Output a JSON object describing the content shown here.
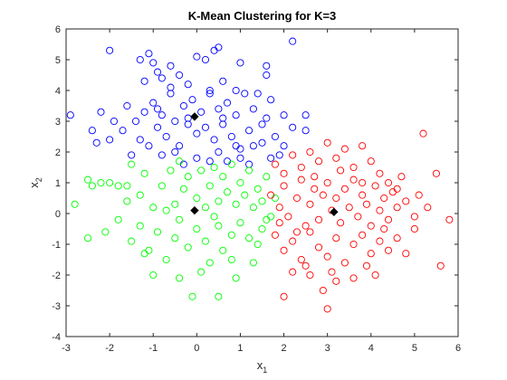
{
  "chart_data": {
    "type": "scatter",
    "title": "K-Mean Clustering for K=3",
    "xlabel": "x",
    "xlabel_sub": "1",
    "ylabel": "x",
    "ylabel_sub": "2",
    "xlim": [
      -3,
      6
    ],
    "ylim": [
      -4,
      6
    ],
    "x_ticks": [
      "-3",
      "-2",
      "-1",
      "0",
      "1",
      "2",
      "3",
      "4",
      "5",
      "6"
    ],
    "y_ticks": [
      "-4",
      "-3",
      "-2",
      "-1",
      "0",
      "1",
      "2",
      "3",
      "4",
      "5",
      "6"
    ],
    "grid": false,
    "marker": "open-circle",
    "series": [
      {
        "color": "#0000ff",
        "points": [
          [
            -2.0,
            5.3
          ],
          [
            -1.3,
            5.0
          ],
          [
            -1.1,
            5.2
          ],
          [
            -1.0,
            4.9
          ],
          [
            -0.9,
            4.6
          ],
          [
            -0.8,
            4.4
          ],
          [
            -0.6,
            4.8
          ],
          [
            -0.4,
            4.5
          ],
          [
            -0.2,
            4.2
          ],
          [
            0.0,
            5.1
          ],
          [
            0.2,
            5.0
          ],
          [
            0.4,
            5.3
          ],
          [
            0.5,
            5.4
          ],
          [
            0.6,
            4.3
          ],
          [
            1.0,
            4.9
          ],
          [
            1.6,
            4.8
          ],
          [
            2.2,
            5.6
          ],
          [
            1.6,
            4.5
          ],
          [
            -2.9,
            3.2
          ],
          [
            -2.4,
            2.7
          ],
          [
            -2.3,
            2.3
          ],
          [
            -2.2,
            3.3
          ],
          [
            -1.9,
            3.0
          ],
          [
            -1.7,
            2.7
          ],
          [
            -1.6,
            3.5
          ],
          [
            -1.4,
            3.0
          ],
          [
            -1.3,
            2.4
          ],
          [
            -1.2,
            3.3
          ],
          [
            -1.0,
            3.6
          ],
          [
            -0.9,
            2.8
          ],
          [
            -0.8,
            3.2
          ],
          [
            -0.7,
            2.5
          ],
          [
            -0.6,
            3.9
          ],
          [
            -0.5,
            3.0
          ],
          [
            -0.4,
            2.2
          ],
          [
            -0.3,
            3.5
          ],
          [
            -0.2,
            2.9
          ],
          [
            -0.1,
            3.7
          ],
          [
            0.0,
            2.6
          ],
          [
            0.1,
            3.3
          ],
          [
            0.2,
            2.8
          ],
          [
            0.3,
            3.9
          ],
          [
            0.4,
            2.4
          ],
          [
            0.5,
            3.4
          ],
          [
            0.6,
            2.9
          ],
          [
            0.7,
            3.6
          ],
          [
            0.8,
            2.5
          ],
          [
            0.9,
            3.2
          ],
          [
            1.0,
            2.1
          ],
          [
            1.1,
            3.9
          ],
          [
            1.2,
            2.7
          ],
          [
            1.3,
            3.4
          ],
          [
            1.5,
            2.9
          ],
          [
            1.7,
            3.7
          ],
          [
            1.8,
            2.5
          ],
          [
            2.0,
            3.2
          ],
          [
            2.2,
            2.8
          ],
          [
            2.5,
            2.7
          ],
          [
            2.5,
            3.2
          ],
          [
            -1.5,
            1.9
          ],
          [
            -1.1,
            2.2
          ],
          [
            -0.8,
            1.9
          ],
          [
            -0.5,
            2.0
          ],
          [
            -0.3,
            1.6
          ],
          [
            0.0,
            1.8
          ],
          [
            0.3,
            1.7
          ],
          [
            0.5,
            2.0
          ],
          [
            0.7,
            1.7
          ],
          [
            0.9,
            2.2
          ],
          [
            1.0,
            1.8
          ],
          [
            1.2,
            1.6
          ],
          [
            1.5,
            2.3
          ],
          [
            1.7,
            1.8
          ],
          [
            2.0,
            2.2
          ],
          [
            1.9,
            1.9
          ],
          [
            -0.6,
            4.1
          ],
          [
            0.3,
            4.0
          ],
          [
            -1.2,
            4.3
          ],
          [
            0.9,
            4.0
          ],
          [
            1.4,
            3.9
          ],
          [
            -0.9,
            3.4
          ],
          [
            0.6,
            3.1
          ],
          [
            1.6,
            3.1
          ],
          [
            -0.2,
            3.1
          ],
          [
            1.3,
            2.2
          ],
          [
            -2.0,
            2.4
          ]
        ]
      },
      {
        "color": "#00ff00",
        "points": [
          [
            -2.5,
            1.1
          ],
          [
            -2.4,
            0.9
          ],
          [
            -2.2,
            1.0
          ],
          [
            -2.0,
            1.0
          ],
          [
            -1.8,
            0.9
          ],
          [
            -1.6,
            0.4
          ],
          [
            -1.5,
            1.6
          ],
          [
            -1.3,
            0.6
          ],
          [
            -1.2,
            1.3
          ],
          [
            -1.0,
            0.2
          ],
          [
            -0.8,
            0.9
          ],
          [
            -0.6,
            1.4
          ],
          [
            -0.5,
            0.3
          ],
          [
            -0.4,
            1.7
          ],
          [
            -0.3,
            0.8
          ],
          [
            -0.2,
            1.2
          ],
          [
            0.0,
            0.5
          ],
          [
            0.1,
            1.4
          ],
          [
            0.2,
            0.2
          ],
          [
            0.3,
            0.9
          ],
          [
            0.4,
            1.5
          ],
          [
            0.5,
            0.4
          ],
          [
            0.6,
            1.2
          ],
          [
            0.7,
            0.7
          ],
          [
            0.8,
            1.6
          ],
          [
            0.9,
            0.3
          ],
          [
            1.0,
            1.0
          ],
          [
            1.1,
            0.6
          ],
          [
            1.2,
            1.4
          ],
          [
            1.3,
            0.2
          ],
          [
            1.4,
            0.8
          ],
          [
            1.5,
            0.4
          ],
          [
            1.6,
            1.2
          ],
          [
            1.7,
            -0.1
          ],
          [
            1.8,
            0.5
          ],
          [
            -2.8,
            0.3
          ],
          [
            -2.5,
            -0.8
          ],
          [
            -2.1,
            -0.6
          ],
          [
            -1.8,
            -0.2
          ],
          [
            -1.5,
            -0.9
          ],
          [
            -1.3,
            -0.4
          ],
          [
            -1.1,
            -1.2
          ],
          [
            -0.9,
            -0.6
          ],
          [
            -0.7,
            -1.5
          ],
          [
            -0.5,
            -0.8
          ],
          [
            -0.4,
            -0.2
          ],
          [
            -0.2,
            -1.1
          ],
          [
            0.0,
            -0.5
          ],
          [
            0.2,
            -0.9
          ],
          [
            0.3,
            -1.6
          ],
          [
            0.5,
            -0.4
          ],
          [
            0.6,
            -1.2
          ],
          [
            0.8,
            -0.7
          ],
          [
            1.0,
            -0.3
          ],
          [
            1.2,
            -0.8
          ],
          [
            1.4,
            -1.0
          ],
          [
            1.5,
            -0.5
          ],
          [
            1.6,
            -0.2
          ],
          [
            -1.0,
            -2.0
          ],
          [
            -0.4,
            -2.1
          ],
          [
            0.1,
            -1.9
          ],
          [
            0.5,
            -2.7
          ],
          [
            0.9,
            -2.1
          ],
          [
            -0.1,
            -2.7
          ],
          [
            -1.2,
            -1.3
          ],
          [
            0.8,
            -1.5
          ],
          [
            1.3,
            -1.6
          ],
          [
            -1.6,
            0.9
          ],
          [
            -0.7,
            0.1
          ],
          [
            0.4,
            -0.1
          ]
        ]
      },
      {
        "color": "#ff0000",
        "points": [
          [
            1.8,
            1.6
          ],
          [
            2.0,
            1.3
          ],
          [
            2.2,
            1.9
          ],
          [
            2.4,
            1.5
          ],
          [
            2.6,
            2.0
          ],
          [
            2.8,
            1.7
          ],
          [
            3.0,
            2.3
          ],
          [
            3.2,
            1.8
          ],
          [
            3.4,
            2.1
          ],
          [
            3.6,
            1.5
          ],
          [
            3.8,
            2.2
          ],
          [
            4.0,
            1.7
          ],
          [
            4.2,
            1.3
          ],
          [
            4.4,
            1.0
          ],
          [
            4.6,
            0.8
          ],
          [
            5.2,
            2.6
          ],
          [
            5.5,
            1.3
          ],
          [
            1.7,
            0.6
          ],
          [
            1.9,
            0.2
          ],
          [
            2.0,
            0.9
          ],
          [
            2.1,
            -0.1
          ],
          [
            2.3,
            0.5
          ],
          [
            2.4,
            1.1
          ],
          [
            2.5,
            -0.4
          ],
          [
            2.6,
            0.3
          ],
          [
            2.7,
            0.8
          ],
          [
            2.8,
            -0.2
          ],
          [
            2.9,
            0.6
          ],
          [
            3.0,
            1.0
          ],
          [
            3.1,
            0.1
          ],
          [
            3.2,
            0.5
          ],
          [
            3.3,
            -0.3
          ],
          [
            3.4,
            0.8
          ],
          [
            3.5,
            0.2
          ],
          [
            3.6,
            1.1
          ],
          [
            3.7,
            -0.1
          ],
          [
            3.8,
            0.6
          ],
          [
            3.9,
            0.3
          ],
          [
            4.0,
            -0.4
          ],
          [
            4.1,
            0.9
          ],
          [
            4.2,
            0.1
          ],
          [
            4.3,
            0.5
          ],
          [
            4.4,
            -0.2
          ],
          [
            4.5,
            0.7
          ],
          [
            4.6,
            0.2
          ],
          [
            4.8,
            0.4
          ],
          [
            5.0,
            -0.1
          ],
          [
            5.1,
            0.6
          ],
          [
            5.3,
            0.2
          ],
          [
            5.8,
            -0.2
          ],
          [
            1.8,
            -0.7
          ],
          [
            2.0,
            -1.2
          ],
          [
            2.2,
            -0.9
          ],
          [
            2.4,
            -1.5
          ],
          [
            2.6,
            -0.6
          ],
          [
            2.8,
            -1.1
          ],
          [
            3.0,
            -1.4
          ],
          [
            3.2,
            -0.8
          ],
          [
            3.4,
            -1.6
          ],
          [
            3.6,
            -1.0
          ],
          [
            3.8,
            -0.7
          ],
          [
            4.0,
            -1.3
          ],
          [
            4.2,
            -0.9
          ],
          [
            4.4,
            -1.2
          ],
          [
            4.6,
            -0.8
          ],
          [
            4.8,
            -1.3
          ],
          [
            5.0,
            -0.5
          ],
          [
            5.6,
            -1.7
          ],
          [
            2.2,
            -1.9
          ],
          [
            2.6,
            -2.0
          ],
          [
            3.1,
            -1.9
          ],
          [
            3.6,
            -2.1
          ],
          [
            4.1,
            -2.0
          ],
          [
            2.0,
            -2.7
          ],
          [
            2.9,
            -2.5
          ],
          [
            3.2,
            -2.2
          ],
          [
            3.0,
            -3.1
          ],
          [
            2.5,
            -1.7
          ],
          [
            3.9,
            -1.7
          ],
          [
            1.9,
            -0.3
          ],
          [
            3.3,
            1.4
          ],
          [
            4.7,
            1.2
          ],
          [
            2.7,
            1.2
          ],
          [
            3.8,
            1.0
          ],
          [
            2.3,
            -0.6
          ],
          [
            4.3,
            -0.5
          ]
        ]
      }
    ],
    "centroids": {
      "color": "#000000",
      "marker": "filled-diamond",
      "points": [
        [
          -0.05,
          3.15
        ],
        [
          -0.05,
          0.1
        ],
        [
          3.15,
          0.05
        ]
      ]
    }
  }
}
